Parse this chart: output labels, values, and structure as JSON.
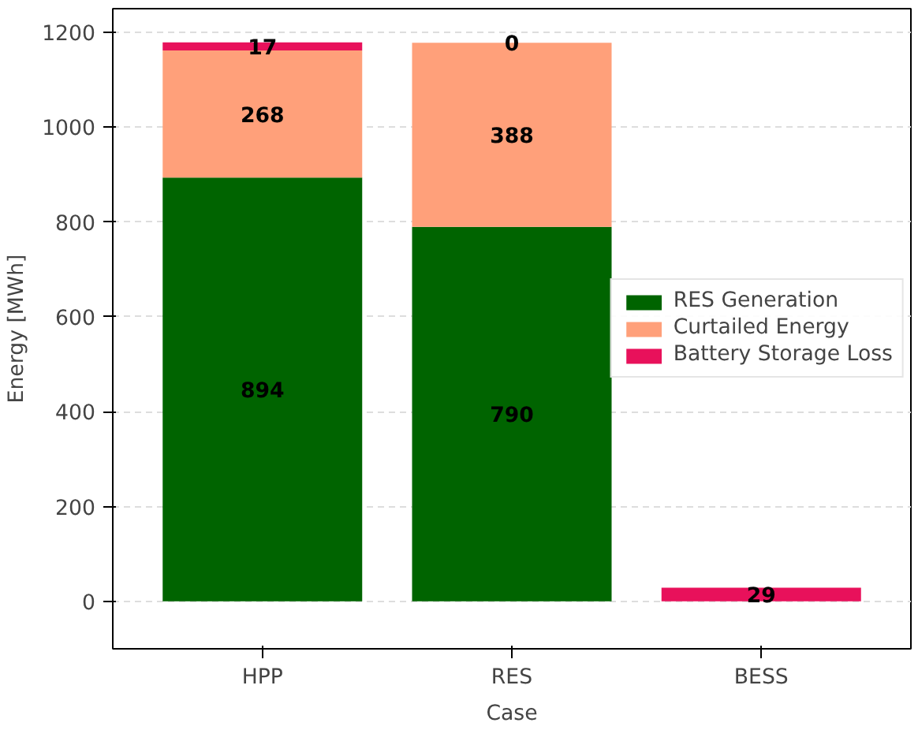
{
  "chart_data": {
    "type": "bar",
    "stacked": true,
    "xlabel": "Case",
    "ylabel": "Energy [MWh]",
    "categories": [
      "HPP",
      "RES",
      "BESS"
    ],
    "series": [
      {
        "name": "RES Generation",
        "color": "#006400",
        "values": [
          894,
          790,
          0
        ],
        "value_labels": [
          "894",
          "790",
          null
        ]
      },
      {
        "name": "Curtailed Energy",
        "color": "#ffa07a",
        "values": [
          268,
          388,
          0
        ],
        "value_labels": [
          "268",
          "388",
          null
        ]
      },
      {
        "name": "Battery Storage Loss",
        "color": "#e8115b",
        "values": [
          17,
          0,
          29
        ],
        "value_labels": [
          "17",
          "0",
          "29"
        ]
      }
    ],
    "ylim": [
      -100,
      1250
    ],
    "yticks": [
      0,
      200,
      400,
      600,
      800,
      1000,
      1200
    ],
    "grid": "y",
    "legend": "right"
  }
}
